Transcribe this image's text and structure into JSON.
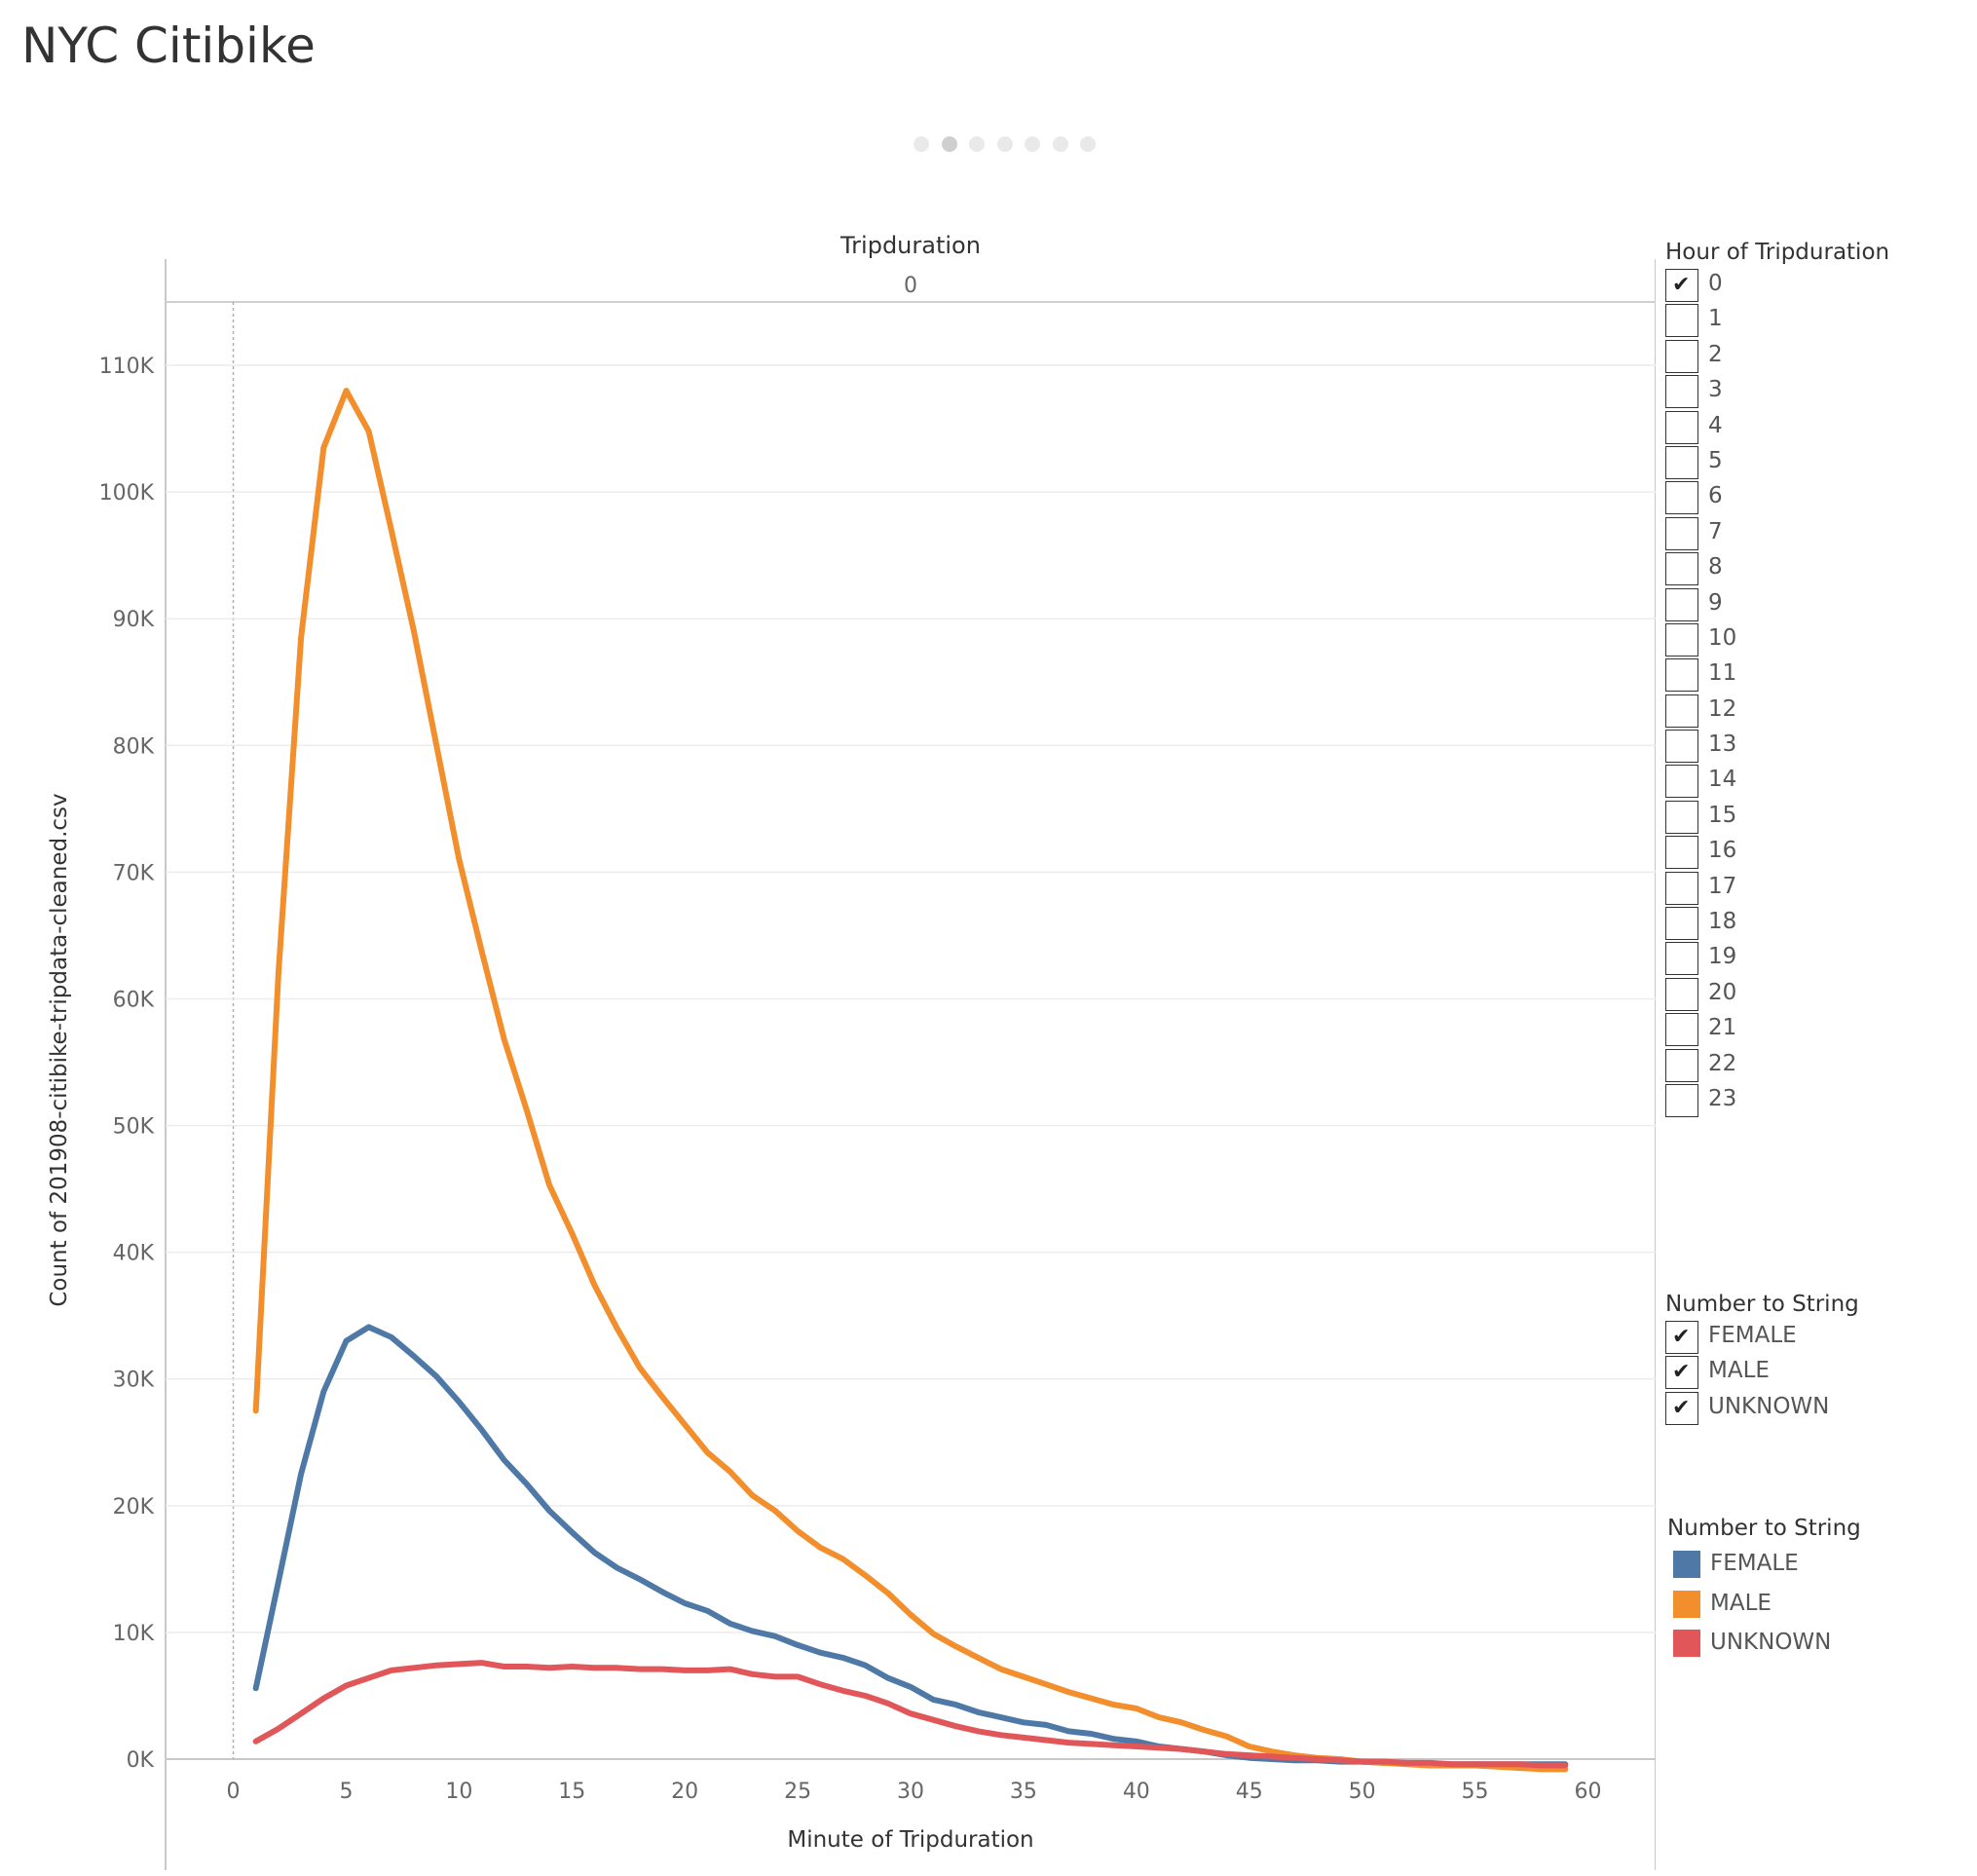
{
  "title": "NYC Citibike",
  "pagination": {
    "count": 7,
    "active": 1
  },
  "chart_data": {
    "type": "line",
    "column_header": "Tripduration",
    "column_value": "0",
    "xlabel": "Minute of Tripduration",
    "ylabel": "Count of 201908-citibike-tripdata-cleaned.csv",
    "xlim": [
      -3,
      63
    ],
    "ylim": [
      0,
      115000
    ],
    "x_ticks": [
      0,
      5,
      10,
      15,
      20,
      25,
      30,
      35,
      40,
      45,
      50,
      55,
      60
    ],
    "x_tick_labels": [
      "0",
      "5",
      "10",
      "15",
      "20",
      "25",
      "30",
      "35",
      "40",
      "45",
      "50",
      "55",
      "60"
    ],
    "y_ticks": [
      0,
      10000,
      20000,
      30000,
      40000,
      50000,
      60000,
      70000,
      80000,
      90000,
      100000,
      110000
    ],
    "y_tick_labels": [
      "0K",
      "10K",
      "20K",
      "30K",
      "40K",
      "50K",
      "60K",
      "70K",
      "80K",
      "90K",
      "100K",
      "110K"
    ],
    "grid": "horizontal",
    "x": [
      1,
      2,
      3,
      4,
      5,
      6,
      7,
      8,
      9,
      10,
      11,
      12,
      13,
      14,
      15,
      16,
      17,
      18,
      19,
      20,
      21,
      22,
      23,
      24,
      25,
      26,
      27,
      28,
      29,
      30,
      31,
      32,
      33,
      34,
      35,
      36,
      37,
      38,
      39,
      40,
      41,
      42,
      43,
      44,
      45,
      46,
      47,
      48,
      49,
      50,
      51,
      52,
      53,
      54,
      55,
      56,
      57,
      58,
      59
    ],
    "series": [
      {
        "name": "FEMALE",
        "color": "#4e79a7",
        "values": [
          5600,
          14000,
          22500,
          29000,
          33000,
          34100,
          33300,
          31800,
          30200,
          28200,
          26000,
          23600,
          21700,
          19600,
          17900,
          16300,
          15100,
          14200,
          13200,
          12300,
          11700,
          10700,
          10100,
          9700,
          9000,
          8400,
          8000,
          7400,
          6400,
          5700,
          4700,
          4300,
          3700,
          3300,
          2900,
          2700,
          2200,
          2000,
          1600,
          1400,
          1000,
          800,
          600,
          300,
          100,
          0,
          -100,
          -100,
          -200,
          -200,
          -300,
          -300,
          -400,
          -400,
          -400,
          -400,
          -400,
          -400,
          -400
        ]
      },
      {
        "name": "MALE",
        "color": "#f28e2b",
        "values": [
          27500,
          62000,
          88500,
          103500,
          108000,
          104800,
          97000,
          89000,
          80000,
          71000,
          63800,
          56800,
          51200,
          45300,
          41500,
          37400,
          34000,
          30900,
          28600,
          26400,
          24200,
          22700,
          20800,
          19600,
          18000,
          16700,
          15800,
          14500,
          13100,
          11400,
          9900,
          8900,
          8000,
          7100,
          6500,
          5900,
          5300,
          4800,
          4300,
          4000,
          3300,
          2900,
          2300,
          1800,
          1000,
          600,
          300,
          100,
          0,
          -200,
          -300,
          -400,
          -500,
          -500,
          -500,
          -600,
          -700,
          -800,
          -800
        ]
      },
      {
        "name": "UNKNOWN",
        "color": "#e15759",
        "values": [
          1400,
          2400,
          3600,
          4800,
          5800,
          6400,
          7000,
          7200,
          7400,
          7500,
          7600,
          7300,
          7300,
          7200,
          7300,
          7200,
          7200,
          7100,
          7100,
          7000,
          7000,
          7100,
          6700,
          6500,
          6500,
          5900,
          5400,
          5000,
          4400,
          3600,
          3100,
          2600,
          2200,
          1900,
          1700,
          1500,
          1300,
          1200,
          1100,
          1000,
          900,
          800,
          600,
          400,
          300,
          200,
          100,
          0,
          -100,
          -200,
          -200,
          -300,
          -300,
          -400,
          -400,
          -400,
          -400,
          -500,
          -500
        ]
      }
    ]
  },
  "filter_hours": {
    "title": "Hour of Tripduration",
    "items": [
      {
        "label": "0",
        "checked": true
      },
      {
        "label": "1",
        "checked": false
      },
      {
        "label": "2",
        "checked": false
      },
      {
        "label": "3",
        "checked": false
      },
      {
        "label": "4",
        "checked": false
      },
      {
        "label": "5",
        "checked": false
      },
      {
        "label": "6",
        "checked": false
      },
      {
        "label": "7",
        "checked": false
      },
      {
        "label": "8",
        "checked": false
      },
      {
        "label": "9",
        "checked": false
      },
      {
        "label": "10",
        "checked": false
      },
      {
        "label": "11",
        "checked": false
      },
      {
        "label": "12",
        "checked": false
      },
      {
        "label": "13",
        "checked": false
      },
      {
        "label": "14",
        "checked": false
      },
      {
        "label": "15",
        "checked": false
      },
      {
        "label": "16",
        "checked": false
      },
      {
        "label": "17",
        "checked": false
      },
      {
        "label": "18",
        "checked": false
      },
      {
        "label": "19",
        "checked": false
      },
      {
        "label": "20",
        "checked": false
      },
      {
        "label": "21",
        "checked": false
      },
      {
        "label": "22",
        "checked": false
      },
      {
        "label": "23",
        "checked": false
      }
    ]
  },
  "filter_gender": {
    "title": "Number to String",
    "items": [
      {
        "label": "FEMALE",
        "checked": true
      },
      {
        "label": "MALE",
        "checked": true
      },
      {
        "label": "UNKNOWN",
        "checked": true
      }
    ]
  },
  "color_legend": {
    "title": "Number to String",
    "items": [
      {
        "label": "FEMALE",
        "color": "#4e79a7"
      },
      {
        "label": "MALE",
        "color": "#f28e2b"
      },
      {
        "label": "UNKNOWN",
        "color": "#e15759"
      }
    ]
  }
}
